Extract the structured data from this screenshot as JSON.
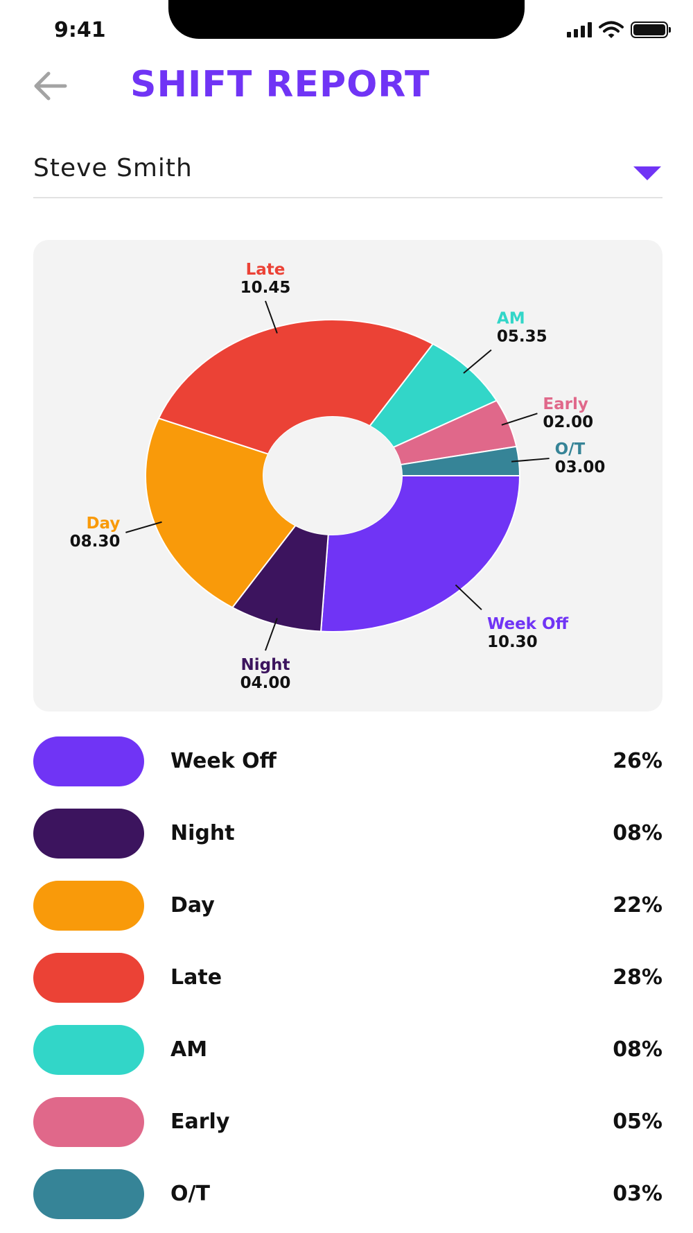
{
  "status_bar": {
    "time": "9:41"
  },
  "header": {
    "title": "SHIFT REPORT",
    "back_icon": "arrow-left-icon"
  },
  "employee_select": {
    "value": "Steve Smith",
    "caret_icon": "caret-down-icon",
    "accent_color": "#7034f5"
  },
  "chart_data": {
    "type": "pie",
    "variant": "donut",
    "series": [
      {
        "name": "Week Off",
        "label": "10.30",
        "percent": 26,
        "color": "#7034f5"
      },
      {
        "name": "Night",
        "label": "04.00",
        "percent": 8,
        "color": "#3c145e"
      },
      {
        "name": "Day",
        "label": "08.30",
        "percent": 22,
        "color": "#f99a0a"
      },
      {
        "name": "Late",
        "label": "10.45",
        "percent": 28,
        "color": "#eb4236"
      },
      {
        "name": "AM",
        "label": "05.35",
        "percent": 8,
        "color": "#32d6c8"
      },
      {
        "name": "Early",
        "label": "02.00",
        "percent": 5,
        "color": "#e0688a"
      },
      {
        "name": "O/T",
        "label": "03.00",
        "percent": 3,
        "color": "#368497"
      }
    ]
  },
  "legend": [
    {
      "label": "Week Off",
      "percent": "26%",
      "color": "#7034f5"
    },
    {
      "label": "Night",
      "percent": "08%",
      "color": "#3c145e"
    },
    {
      "label": "Day",
      "percent": "22%",
      "color": "#f99a0a"
    },
    {
      "label": "Late",
      "percent": "28%",
      "color": "#eb4236"
    },
    {
      "label": "AM",
      "percent": "08%",
      "color": "#32d6c8"
    },
    {
      "label": "Early",
      "percent": "05%",
      "color": "#e0688a"
    },
    {
      "label": "O/T",
      "percent": "03%",
      "color": "#368497"
    }
  ]
}
